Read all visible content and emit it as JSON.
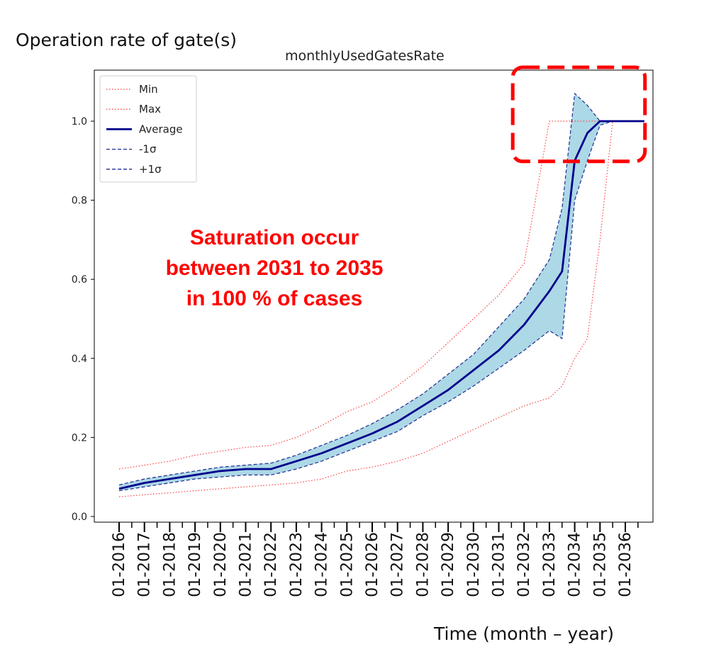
{
  "page_title_left": "Operation rate of gate(s)",
  "chart_data": {
    "type": "line",
    "title": "monthlyUsedGatesRate",
    "ylabel": "Operation rate of gate(s)",
    "xlabel": "Time (month – year)",
    "ylim": [
      0.0,
      1.1
    ],
    "xlim": [
      "01-2016",
      "01-2037"
    ],
    "grid": false,
    "legend_position": "top-left",
    "x_ticks": [
      "01-2016",
      "01-2017",
      "01-2018",
      "01-2019",
      "01-2020",
      "01-2021",
      "01-2022",
      "01-2023",
      "01-2024",
      "01-2025",
      "01-2026",
      "01-2027",
      "01-2028",
      "01-2029",
      "01-2030",
      "01-2031",
      "01-2032",
      "01-2033",
      "01-2034",
      "01-2035",
      "01-2036"
    ],
    "y_ticks": [
      "0.0",
      "0.2",
      "0.4",
      "0.6",
      "0.8",
      "1.0"
    ],
    "legend": [
      {
        "label": "Min",
        "style": "dotted",
        "color": "#ff4040"
      },
      {
        "label": "Max",
        "style": "dotted",
        "color": "#ff4040"
      },
      {
        "label": "Average",
        "style": "solid",
        "color": "#00008b"
      },
      {
        "label": "-1σ",
        "style": "dashed",
        "color": "#1f2d8f"
      },
      {
        "label": "+1σ",
        "style": "dashed",
        "color": "#1f2d8f"
      }
    ],
    "x": [
      "01-2016",
      "01-2017",
      "01-2018",
      "01-2019",
      "01-2020",
      "01-2021",
      "01-2022",
      "01-2023",
      "01-2024",
      "01-2025",
      "01-2026",
      "01-2027",
      "01-2028",
      "01-2029",
      "01-2030",
      "01-2031",
      "01-2032",
      "01-2033",
      "07-2033",
      "01-2034",
      "07-2034",
      "01-2035",
      "07-2035",
      "01-2036",
      "10-2036"
    ],
    "series": [
      {
        "name": "Average",
        "values": [
          0.07,
          0.085,
          0.095,
          0.105,
          0.115,
          0.12,
          0.12,
          0.14,
          0.16,
          0.185,
          0.21,
          0.24,
          0.28,
          0.32,
          0.37,
          0.42,
          0.485,
          0.57,
          0.62,
          0.9,
          0.97,
          1.0,
          1.0,
          1.0,
          1.0
        ]
      },
      {
        "name": "-1σ",
        "values": [
          0.065,
          0.075,
          0.085,
          0.095,
          0.1,
          0.105,
          0.105,
          0.12,
          0.14,
          0.165,
          0.19,
          0.215,
          0.255,
          0.29,
          0.33,
          0.375,
          0.42,
          0.47,
          0.45,
          0.8,
          0.9,
          0.99,
          1.0,
          1.0,
          1.0
        ]
      },
      {
        "name": "+1σ",
        "values": [
          0.08,
          0.095,
          0.105,
          0.115,
          0.125,
          0.13,
          0.135,
          0.155,
          0.18,
          0.205,
          0.235,
          0.27,
          0.31,
          0.36,
          0.41,
          0.48,
          0.55,
          0.65,
          0.78,
          1.07,
          1.04,
          1.0,
          1.0,
          1.0,
          1.0
        ]
      },
      {
        "name": "Min",
        "values": [
          0.05,
          0.055,
          0.06,
          0.065,
          0.07,
          0.075,
          0.08,
          0.085,
          0.095,
          0.115,
          0.125,
          0.14,
          0.16,
          0.19,
          0.22,
          0.25,
          0.28,
          0.3,
          0.33,
          0.4,
          0.45,
          0.7,
          1.0,
          1.0,
          1.0
        ]
      },
      {
        "name": "Max",
        "values": [
          0.12,
          0.13,
          0.14,
          0.155,
          0.165,
          0.175,
          0.18,
          0.2,
          0.23,
          0.265,
          0.29,
          0.33,
          0.38,
          0.44,
          0.5,
          0.56,
          0.64,
          1.0,
          1.0,
          1.0,
          1.0,
          1.0,
          1.0,
          1.0,
          1.0
        ]
      }
    ],
    "annotations": [
      {
        "text_lines": [
          "Saturation occur",
          "between 2031 to 2035",
          "in 100 % of cases"
        ],
        "color": "#ff0000"
      },
      {
        "shape": "dashed-rectangle",
        "color": "#ff0000",
        "x_range": [
          "01-2032",
          "01-2037"
        ],
        "y_range": [
          0.9,
          1.07
        ]
      }
    ]
  }
}
